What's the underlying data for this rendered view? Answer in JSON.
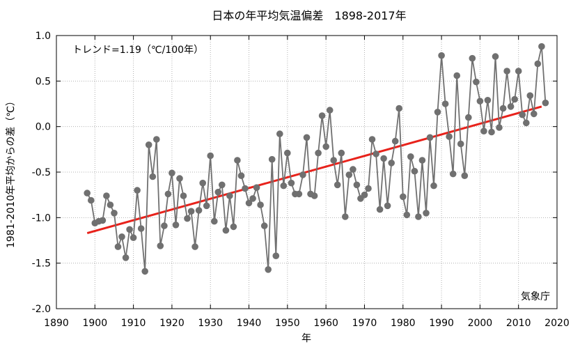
{
  "chart_data": {
    "type": "line",
    "title": "日本の年平均気温偏差　1898-2017年",
    "xlabel": "年",
    "ylabel": "1981-2010年平均からの差（℃）",
    "xlim": [
      1890,
      2020
    ],
    "ylim": [
      -2.0,
      1.0
    ],
    "xticks": [
      1890,
      1900,
      1910,
      1920,
      1930,
      1940,
      1950,
      1960,
      1970,
      1980,
      1990,
      2000,
      2010,
      2020
    ],
    "yticks": [
      -2.0,
      -1.5,
      -1.0,
      -0.5,
      0.0,
      0.5,
      1.0
    ],
    "xtick_labels": [
      "1890",
      "1900",
      "1910",
      "1920",
      "1930",
      "1940",
      "1950",
      "1960",
      "1970",
      "1980",
      "1990",
      "2000",
      "2010",
      "2020"
    ],
    "ytick_labels": [
      "-2.0",
      "-1.5",
      "-1.0",
      "-0.5",
      "0.0",
      "0.5",
      "1.0"
    ],
    "grid": true,
    "annotation": "トレンド=1.19（℃/100年）",
    "credit": "気象庁",
    "series": [
      {
        "color": "#707070",
        "x": [
          1898,
          1899,
          1900,
          1901,
          1902,
          1903,
          1904,
          1905,
          1906,
          1907,
          1908,
          1909,
          1910,
          1911,
          1912,
          1913,
          1914,
          1915,
          1916,
          1917,
          1918,
          1919,
          1920,
          1921,
          1922,
          1923,
          1924,
          1925,
          1926,
          1927,
          1928,
          1929,
          1930,
          1931,
          1932,
          1933,
          1934,
          1935,
          1936,
          1937,
          1938,
          1939,
          1940,
          1941,
          1942,
          1943,
          1944,
          1945,
          1946,
          1947,
          1948,
          1949,
          1950,
          1951,
          1952,
          1953,
          1954,
          1955,
          1956,
          1957,
          1958,
          1959,
          1960,
          1961,
          1962,
          1963,
          1964,
          1965,
          1966,
          1967,
          1968,
          1969,
          1970,
          1971,
          1972,
          1973,
          1974,
          1975,
          1976,
          1977,
          1978,
          1979,
          1980,
          1981,
          1982,
          1983,
          1984,
          1985,
          1986,
          1987,
          1988,
          1989,
          1990,
          1991,
          1992,
          1993,
          1994,
          1995,
          1996,
          1997,
          1998,
          1999,
          2000,
          2001,
          2002,
          2003,
          2004,
          2005,
          2006,
          2007,
          2008,
          2009,
          2010,
          2011,
          2012,
          2013,
          2014,
          2015,
          2016,
          2017
        ],
        "y": [
          -0.73,
          -0.81,
          -1.06,
          -1.04,
          -1.03,
          -0.76,
          -0.86,
          -0.95,
          -1.32,
          -1.21,
          -1.44,
          -1.13,
          -1.22,
          -0.7,
          -1.12,
          -1.59,
          -0.2,
          -0.55,
          -0.14,
          -1.31,
          -1.09,
          -0.74,
          -0.51,
          -1.08,
          -0.57,
          -0.76,
          -1.01,
          -0.93,
          -1.32,
          -0.92,
          -0.62,
          -0.87,
          -0.32,
          -1.04,
          -0.72,
          -0.64,
          -1.14,
          -0.76,
          -1.1,
          -0.37,
          -0.54,
          -0.68,
          -0.84,
          -0.79,
          -0.67,
          -0.86,
          -1.09,
          -1.57,
          -0.36,
          -1.42,
          -0.08,
          -0.65,
          -0.29,
          -0.62,
          -0.74,
          -0.74,
          -0.53,
          -0.12,
          -0.74,
          -0.76,
          -0.29,
          0.12,
          -0.22,
          0.18,
          -0.37,
          -0.64,
          -0.29,
          -0.99,
          -0.53,
          -0.47,
          -0.64,
          -0.79,
          -0.75,
          -0.68,
          -0.14,
          -0.3,
          -0.91,
          -0.35,
          -0.87,
          -0.4,
          -0.16,
          0.2,
          -0.77,
          -0.97,
          -0.33,
          -0.49,
          -0.99,
          -0.37,
          -0.95,
          -0.12,
          -0.65,
          0.16,
          0.78,
          0.25,
          -0.11,
          -0.52,
          0.56,
          -0.19,
          -0.54,
          0.1,
          0.75,
          0.49,
          0.28,
          -0.05,
          0.29,
          -0.06,
          0.77,
          -0.01,
          0.2,
          0.61,
          0.22,
          0.3,
          0.61,
          0.13,
          0.04,
          0.34,
          0.14,
          0.69,
          0.88,
          0.26
        ]
      }
    ],
    "trend": {
      "color": "#e8221b",
      "x": [
        1898,
        2016
      ],
      "y": [
        -1.17,
        0.22
      ]
    }
  }
}
